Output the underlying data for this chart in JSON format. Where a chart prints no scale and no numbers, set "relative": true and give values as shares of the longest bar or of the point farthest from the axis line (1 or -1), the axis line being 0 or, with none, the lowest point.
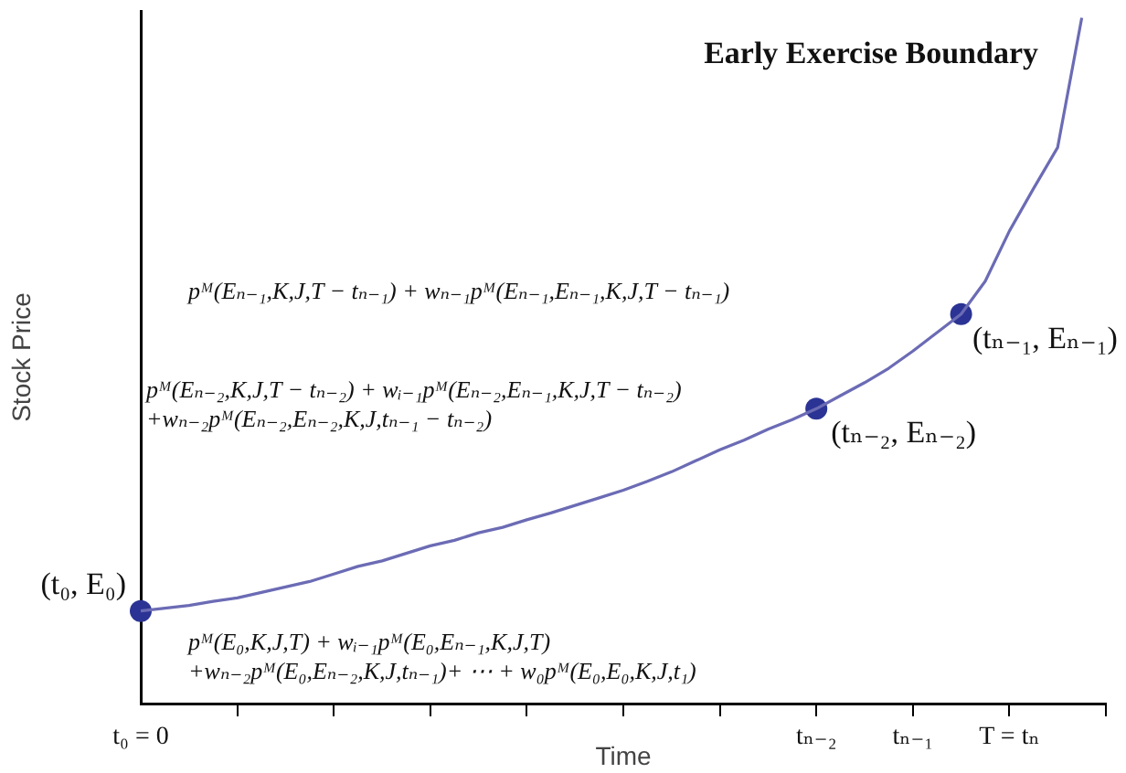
{
  "chart_data": {
    "type": "line",
    "title": "Early Exercise Boundary",
    "xlabel": "Time",
    "ylabel": "Stock Price",
    "relative": true,
    "categories": [
      "t₀ = 0",
      null,
      null,
      null,
      null,
      null,
      null,
      null,
      null,
      null,
      null,
      null,
      null,
      null,
      null,
      null,
      null,
      null,
      null,
      null,
      null,
      null,
      null,
      null,
      null,
      null,
      null,
      null,
      "tₙ₋₂",
      null,
      null,
      null,
      "tₙ₋₁",
      null,
      null,
      null,
      "T = tₙ",
      null,
      null,
      null,
      null
    ],
    "series": [
      {
        "color": "#6b6bb5",
        "marker": "none",
        "values": [
          0.135,
          0.139,
          0.143,
          0.149,
          0.154,
          0.162,
          0.17,
          0.178,
          0.189,
          0.2,
          0.208,
          0.219,
          0.23,
          0.238,
          0.249,
          0.257,
          0.268,
          0.278,
          0.289,
          0.3,
          0.311,
          0.324,
          0.338,
          0.354,
          0.37,
          0.384,
          0.4,
          0.414,
          0.43,
          0.449,
          0.468,
          0.489,
          0.514,
          0.541,
          0.568,
          0.616,
          0.689,
          0.751,
          0.811,
          1,
          null
        ]
      },
      {
        "type": "scatter",
        "color": "#2b3494",
        "marker": "circle",
        "values": [
          0.135,
          null,
          null,
          null,
          null,
          null,
          null,
          null,
          null,
          null,
          null,
          null,
          null,
          null,
          null,
          null,
          null,
          null,
          null,
          null,
          null,
          null,
          null,
          null,
          null,
          null,
          null,
          null,
          0.43,
          null,
          null,
          null,
          null,
          null,
          0.568,
          null,
          null,
          null,
          null,
          null,
          null
        ]
      }
    ],
    "annotations": [
      {
        "text": "(t₀, E₀)",
        "x": "t₀ = 0",
        "y": 0.135
      },
      {
        "text": "(tₙ₋₂, Eₙ₋₂)",
        "x": "tₙ₋₂",
        "y": 0.43
      },
      "(tₙ₋₁, Eₙ₋₁)",
      "pᴹ(Eₙ₋₁,K,J,T − tₙ₋₁) + wₙ₋₁pᴹ(Eₙ₋₁,Eₙ₋₁,K,J,T − tₙ₋₁)",
      "pᴹ(Eₙ₋₂,K,J,T − tₙ₋₂) + wᵢ₋₁pᴹ(Eₙ₋₂,Eₙ₋₁,K,J,T − tₙ₋₂)\n+wₙ₋₂pᴹ(Eₙ₋₂,Eₙ₋₂,K,J,tₙ₋₁ − tₙ₋₂)",
      "pᴹ(E₀,K,J,T) + wᵢ₋₁pᴹ(E₀,Eₙ₋₁,K,J,T)\n+wₙ₋₂pᴹ(E₀,Eₙ₋₂,K,J,tₙ₋₁)+ ⋯ + w₀pᴹ(E₀,E₀,K,J,t₁)"
    ]
  }
}
